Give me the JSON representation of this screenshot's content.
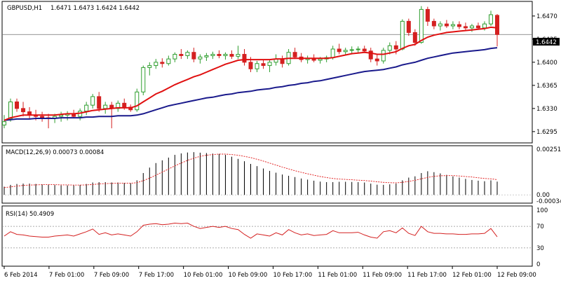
{
  "main": {
    "symbol": "GBPUSD,H1",
    "ohlc": "1.6471 1.6473 1.6424 1.6442",
    "y_ticks": [
      "1.6470",
      "1.6435",
      "1.6400",
      "1.6365",
      "1.6330",
      "1.6295"
    ],
    "y_tick_values": [
      1.647,
      1.6435,
      1.64,
      1.6365,
      1.633,
      1.6295
    ],
    "current_price_label": "1.6442",
    "current_price": 1.6442,
    "colors": {
      "bull": "#2e9e2e",
      "bear": "#d42020",
      "ma_fast": "#e01010",
      "ma_slow": "#1a1a8c",
      "price_line": "#707070"
    }
  },
  "macd": {
    "label": "MACD(12,26,9) 0.00073 0.00084",
    "y_ticks": [
      "0.00251",
      "0.00",
      "-0.00034"
    ],
    "colors": {
      "histogram": "#000000",
      "signal": "#e01010"
    }
  },
  "rsi": {
    "label": "RSI(14) 50.4909",
    "y_ticks": [
      "100",
      "70",
      "30",
      "0"
    ],
    "colors": {
      "line": "#d42020",
      "levels": "#909090"
    }
  },
  "x_axis": {
    "labels": [
      "6 Feb 2014",
      "7 Feb 01:00",
      "7 Feb 09:00",
      "7 Feb 17:00",
      "10 Feb 01:00",
      "10 Feb 09:00",
      "10 Feb 17:00",
      "11 Feb 01:00",
      "11 Feb 09:00",
      "11 Feb 17:00",
      "12 Feb 01:00",
      "12 Feb 09:00"
    ]
  },
  "chart_data": {
    "type": "candlestick",
    "symbol": "GBPUSD",
    "timeframe": "H1",
    "ylim": [
      1.628,
      1.649
    ],
    "candles": [
      [
        1.6305,
        1.632,
        1.63,
        1.631
      ],
      [
        1.6315,
        1.6345,
        1.631,
        1.634
      ],
      [
        1.634,
        1.6345,
        1.6325,
        1.633
      ],
      [
        1.633,
        1.634,
        1.6318,
        1.6325
      ],
      [
        1.6325,
        1.6332,
        1.6314,
        1.632
      ],
      [
        1.632,
        1.6328,
        1.6312,
        1.6318
      ],
      [
        1.6318,
        1.6325,
        1.631,
        1.6316
      ],
      [
        1.6316,
        1.6322,
        1.63,
        1.6315
      ],
      [
        1.6315,
        1.6322,
        1.6308,
        1.6318
      ],
      [
        1.6318,
        1.6325,
        1.631,
        1.632
      ],
      [
        1.632,
        1.6326,
        1.6312,
        1.6322
      ],
      [
        1.6322,
        1.6328,
        1.6315,
        1.6318
      ],
      [
        1.6318,
        1.633,
        1.6312,
        1.6326
      ],
      [
        1.6326,
        1.634,
        1.632,
        1.6335
      ],
      [
        1.6335,
        1.6352,
        1.633,
        1.6348
      ],
      [
        1.6348,
        1.6355,
        1.6325,
        1.633
      ],
      [
        1.633,
        1.634,
        1.6322,
        1.6335
      ],
      [
        1.6335,
        1.634,
        1.63,
        1.633
      ],
      [
        1.633,
        1.6342,
        1.6325,
        1.6338
      ],
      [
        1.6338,
        1.6345,
        1.6328,
        1.6332
      ],
      [
        1.6332,
        1.6336,
        1.6325,
        1.6328
      ],
      [
        1.6328,
        1.636,
        1.6325,
        1.6355
      ],
      [
        1.6355,
        1.6395,
        1.635,
        1.6392
      ],
      [
        1.6392,
        1.64,
        1.638,
        1.6395
      ],
      [
        1.6395,
        1.6405,
        1.639,
        1.64
      ],
      [
        1.64,
        1.6406,
        1.6392,
        1.6398
      ],
      [
        1.6398,
        1.641,
        1.6395,
        1.6405
      ],
      [
        1.6405,
        1.6415,
        1.64,
        1.6412
      ],
      [
        1.6412,
        1.642,
        1.6405,
        1.641
      ],
      [
        1.641,
        1.6418,
        1.6405,
        1.6415
      ],
      [
        1.6415,
        1.6422,
        1.64,
        1.6405
      ],
      [
        1.6405,
        1.6412,
        1.6398,
        1.6408
      ],
      [
        1.6408,
        1.6414,
        1.6402,
        1.641
      ],
      [
        1.641,
        1.6416,
        1.6405,
        1.6412
      ],
      [
        1.6412,
        1.6418,
        1.6406,
        1.641
      ],
      [
        1.641,
        1.6415,
        1.6404,
        1.6412
      ],
      [
        1.6412,
        1.6418,
        1.6405,
        1.6409
      ],
      [
        1.6409,
        1.6425,
        1.6405,
        1.6412
      ],
      [
        1.6412,
        1.642,
        1.6395,
        1.64
      ],
      [
        1.64,
        1.6408,
        1.6385,
        1.639
      ],
      [
        1.639,
        1.6402,
        1.6385,
        1.6398
      ],
      [
        1.6398,
        1.6404,
        1.639,
        1.6395
      ],
      [
        1.6395,
        1.6403,
        1.6385,
        1.64
      ],
      [
        1.64,
        1.6412,
        1.6395,
        1.6405
      ],
      [
        1.6405,
        1.641,
        1.6392,
        1.6398
      ],
      [
        1.6398,
        1.642,
        1.6395,
        1.6415
      ],
      [
        1.6415,
        1.6422,
        1.6405,
        1.6408
      ],
      [
        1.6408,
        1.6414,
        1.64,
        1.6404
      ],
      [
        1.6404,
        1.641,
        1.6398,
        1.6406
      ],
      [
        1.6406,
        1.6412,
        1.64,
        1.6403
      ],
      [
        1.6403,
        1.6408,
        1.6398,
        1.6405
      ],
      [
        1.6405,
        1.641,
        1.64,
        1.6407
      ],
      [
        1.6407,
        1.6425,
        1.6404,
        1.642
      ],
      [
        1.642,
        1.6428,
        1.6412,
        1.6416
      ],
      [
        1.6416,
        1.6422,
        1.641,
        1.6418
      ],
      [
        1.6418,
        1.6424,
        1.6412,
        1.6419
      ],
      [
        1.6419,
        1.6424,
        1.6414,
        1.642
      ],
      [
        1.642,
        1.6425,
        1.6415,
        1.6417
      ],
      [
        1.6417,
        1.6422,
        1.64,
        1.6405
      ],
      [
        1.6405,
        1.6412,
        1.6395,
        1.6402
      ],
      [
        1.6402,
        1.6422,
        1.6398,
        1.6418
      ],
      [
        1.6418,
        1.643,
        1.6412,
        1.6425
      ],
      [
        1.6425,
        1.6432,
        1.6412,
        1.642
      ],
      [
        1.642,
        1.6465,
        1.6418,
        1.6462
      ],
      [
        1.6462,
        1.6466,
        1.644,
        1.6445
      ],
      [
        1.6445,
        1.645,
        1.6425,
        1.643
      ],
      [
        1.643,
        1.6485,
        1.6428,
        1.648
      ],
      [
        1.648,
        1.6484,
        1.6455,
        1.6462
      ],
      [
        1.6462,
        1.6466,
        1.645,
        1.6455
      ],
      [
        1.6455,
        1.6462,
        1.6448,
        1.6458
      ],
      [
        1.6458,
        1.6464,
        1.6452,
        1.6455
      ],
      [
        1.6455,
        1.6462,
        1.645,
        1.6457
      ],
      [
        1.6457,
        1.6462,
        1.645,
        1.6454
      ],
      [
        1.6454,
        1.646,
        1.6448,
        1.6452
      ],
      [
        1.6452,
        1.6458,
        1.6446,
        1.6455
      ],
      [
        1.6455,
        1.646,
        1.645,
        1.6452
      ],
      [
        1.6452,
        1.6462,
        1.6448,
        1.6458
      ],
      [
        1.6458,
        1.6478,
        1.6455,
        1.6472
      ],
      [
        1.6471,
        1.6473,
        1.6424,
        1.6442
      ]
    ],
    "ma_fast": [
      1.6312,
      1.6316,
      1.6318,
      1.632,
      1.632,
      1.632,
      1.632,
      1.632,
      1.632,
      1.6321,
      1.6322,
      1.6322,
      1.6323,
      1.6325,
      1.6327,
      1.6328,
      1.6329,
      1.633,
      1.6331,
      1.6331,
      1.6331,
      1.6334,
      1.634,
      1.6346,
      1.6352,
      1.6356,
      1.6361,
      1.6366,
      1.637,
      1.6374,
      1.6378,
      1.6381,
      1.6385,
      1.6389,
      1.6393,
      1.6397,
      1.64,
      1.6403,
      1.6404,
      1.6404,
      1.6404,
      1.6404,
      1.6404,
      1.6405,
      1.6405,
      1.6406,
      1.6406,
      1.6406,
      1.6406,
      1.6406,
      1.6406,
      1.6406,
      1.6407,
      1.6409,
      1.6411,
      1.6413,
      1.6414,
      1.6415,
      1.6414,
      1.6412,
      1.6412,
      1.6414,
      1.6416,
      1.6421,
      1.6425,
      1.6427,
      1.6433,
      1.6438,
      1.6441,
      1.6443,
      1.6445,
      1.6446,
      1.6447,
      1.6448,
      1.6449,
      1.645,
      1.6451,
      1.6453,
      1.6452
    ],
    "ma_slow": [
      1.6312,
      1.6313,
      1.6314,
      1.6314,
      1.6314,
      1.6315,
      1.6315,
      1.6315,
      1.6315,
      1.6316,
      1.6316,
      1.6316,
      1.6316,
      1.6317,
      1.6317,
      1.6318,
      1.6318,
      1.6318,
      1.6319,
      1.6319,
      1.6319,
      1.632,
      1.6322,
      1.6325,
      1.6328,
      1.6331,
      1.6334,
      1.6336,
      1.6338,
      1.634,
      1.6342,
      1.6344,
      1.6346,
      1.6347,
      1.6349,
      1.6351,
      1.6352,
      1.6354,
      1.6355,
      1.6356,
      1.6358,
      1.6359,
      1.636,
      1.6362,
      1.6363,
      1.6365,
      1.6366,
      1.6368,
      1.6369,
      1.6371,
      1.6372,
      1.6374,
      1.6376,
      1.6378,
      1.638,
      1.6382,
      1.6384,
      1.6386,
      1.6387,
      1.6388,
      1.6389,
      1.6391,
      1.6393,
      1.6396,
      1.6398,
      1.64,
      1.6403,
      1.6406,
      1.6408,
      1.641,
      1.6412,
      1.6414,
      1.6415,
      1.6416,
      1.6417,
      1.6418,
      1.6419,
      1.6421,
      1.6422
    ],
    "macd_hist": [
      0.00045,
      0.00055,
      0.0006,
      0.00062,
      0.00062,
      0.0006,
      0.00058,
      0.00056,
      0.00054,
      0.00052,
      0.00052,
      0.00052,
      0.00054,
      0.0006,
      0.00068,
      0.0007,
      0.0007,
      0.00068,
      0.00068,
      0.00066,
      0.00064,
      0.0008,
      0.0012,
      0.0015,
      0.00175,
      0.0019,
      0.00205,
      0.0022,
      0.00228,
      0.00233,
      0.00235,
      0.00232,
      0.0023,
      0.00227,
      0.00225,
      0.0022,
      0.0021,
      0.00198,
      0.00185,
      0.0017,
      0.00158,
      0.00145,
      0.00132,
      0.00122,
      0.00112,
      0.00105,
      0.00098,
      0.0009,
      0.00084,
      0.00078,
      0.00073,
      0.0007,
      0.0007,
      0.00072,
      0.00072,
      0.00071,
      0.0007,
      0.00068,
      0.00062,
      0.00056,
      0.00055,
      0.00058,
      0.00062,
      0.0008,
      0.00095,
      0.00102,
      0.0012,
      0.0013,
      0.00125,
      0.00118,
      0.0011,
      0.00102,
      0.00095,
      0.00088,
      0.00082,
      0.00078,
      0.00075,
      0.0008,
      0.00073
    ],
    "macd_signal": [
      0.0004,
      0.00044,
      0.00048,
      0.00052,
      0.00054,
      0.00055,
      0.00056,
      0.00056,
      0.00056,
      0.00055,
      0.00055,
      0.00054,
      0.00054,
      0.00055,
      0.00057,
      0.0006,
      0.00062,
      0.00063,
      0.00064,
      0.00064,
      0.00064,
      0.00067,
      0.00078,
      0.00092,
      0.00108,
      0.00125,
      0.00142,
      0.0016,
      0.00175,
      0.0019,
      0.00202,
      0.00212,
      0.00218,
      0.00222,
      0.00224,
      0.00224,
      0.00222,
      0.00218,
      0.00212,
      0.00205,
      0.00196,
      0.00186,
      0.00175,
      0.00164,
      0.00153,
      0.00143,
      0.00133,
      0.00124,
      0.00116,
      0.00108,
      0.00101,
      0.00095,
      0.0009,
      0.00087,
      0.00085,
      0.00083,
      0.00081,
      0.00079,
      0.00076,
      0.00072,
      0.00069,
      0.00067,
      0.00066,
      0.00069,
      0.00074,
      0.0008,
      0.00088,
      0.00096,
      0.00102,
      0.00105,
      0.00106,
      0.00106,
      0.00104,
      0.00101,
      0.00098,
      0.00094,
      0.0009,
      0.00088,
      0.00084
    ],
    "rsi": [
      52,
      60,
      55,
      54,
      52,
      51,
      50,
      50,
      52,
      53,
      54,
      52,
      56,
      60,
      65,
      55,
      58,
      54,
      56,
      54,
      52,
      60,
      72,
      74,
      75,
      73,
      74,
      76,
      75,
      76,
      70,
      66,
      68,
      70,
      68,
      70,
      66,
      64,
      55,
      48,
      56,
      54,
      52,
      58,
      54,
      64,
      58,
      54,
      56,
      53,
      54,
      55,
      62,
      58,
      58,
      58,
      59,
      54,
      50,
      48,
      60,
      62,
      58,
      67,
      57,
      53,
      70,
      60,
      57,
      57,
      56,
      56,
      55,
      55,
      56,
      56,
      57,
      66,
      50.49
    ]
  }
}
